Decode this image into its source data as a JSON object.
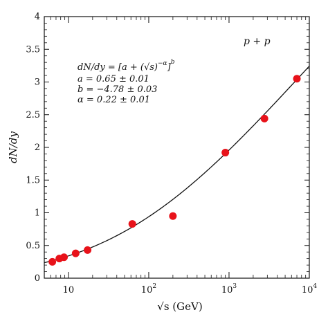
{
  "chart_data": {
    "type": "scatter",
    "title": "",
    "xlabel": "√s (GeV)",
    "ylabel": "dN/dy",
    "x_scale": "log",
    "xlim": [
      5,
      10000
    ],
    "ylim": [
      0,
      4
    ],
    "grid": false,
    "x_ticks": [
      {
        "value": 10,
        "label": "10",
        "exponent": ""
      },
      {
        "value": 100,
        "label": "10",
        "exponent": "2"
      },
      {
        "value": 1000,
        "label": "10",
        "exponent": "3"
      },
      {
        "value": 10000,
        "label": "10",
        "exponent": "4"
      }
    ],
    "y_ticks": [
      {
        "value": 0,
        "label": "0"
      },
      {
        "value": 0.5,
        "label": "0.5"
      },
      {
        "value": 1,
        "label": "1"
      },
      {
        "value": 1.5,
        "label": "1.5"
      },
      {
        "value": 2,
        "label": "2"
      },
      {
        "value": 2.5,
        "label": "2.5"
      },
      {
        "value": 3,
        "label": "3"
      },
      {
        "value": 3.5,
        "label": "3.5"
      },
      {
        "value": 4,
        "label": "4"
      }
    ],
    "series": [
      {
        "kind": "points",
        "color": "#e8121a",
        "points": [
          {
            "x": 6.3,
            "y": 0.25
          },
          {
            "x": 7.7,
            "y": 0.3
          },
          {
            "x": 8.8,
            "y": 0.32
          },
          {
            "x": 12.3,
            "y": 0.38
          },
          {
            "x": 17.3,
            "y": 0.43
          },
          {
            "x": 62.4,
            "y": 0.83
          },
          {
            "x": 200,
            "y": 0.95
          },
          {
            "x": 900,
            "y": 1.92
          },
          {
            "x": 2760,
            "y": 2.44
          },
          {
            "x": 7000,
            "y": 3.05
          }
        ]
      },
      {
        "kind": "fit-curve",
        "color": "#111111",
        "formula": "dN/dy = [a + (√s)^(-α)]^b",
        "a": 0.65,
        "b": -4.78,
        "alpha": 0.22
      }
    ],
    "annotations": {
      "system": "p + p",
      "formula_text": "dN/dy = [a + (√s)",
      "formula_exp": "−α",
      "formula_end": "]",
      "formula_power": "b",
      "param_a": "a = 0.65 ± 0.01",
      "param_b": "b = −4.78 ± 0.03",
      "param_alpha": "α = 0.22 ± 0.01"
    }
  }
}
